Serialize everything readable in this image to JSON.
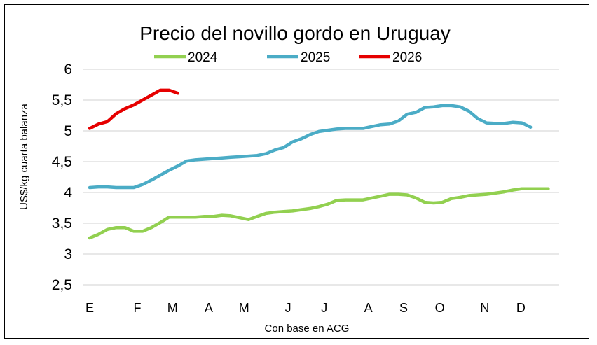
{
  "chart_data": {
    "type": "line",
    "title": "Precio del novillo gordo en Uruguay",
    "xlabel": "Con base en ACG",
    "ylabel": "US$/kg cuarta balanza",
    "ylim": [
      2.5,
      6
    ],
    "yticks": [
      "6",
      "5,5",
      "5",
      "4,5",
      "4",
      "3,5",
      "3",
      "2,5"
    ],
    "ytick_values": [
      6,
      5.5,
      5,
      4.5,
      4,
      3.5,
      3,
      2.5
    ],
    "xlim": [
      0,
      53
    ],
    "xticks": [
      {
        "label": "E",
        "week": 0
      },
      {
        "label": "F",
        "week": 5.4
      },
      {
        "label": "M",
        "week": 9.4
      },
      {
        "label": "A",
        "week": 13.5
      },
      {
        "label": "M",
        "week": 17.5
      },
      {
        "label": "J",
        "week": 22.5
      },
      {
        "label": "J",
        "week": 26.6
      },
      {
        "label": "A",
        "week": 31.6
      },
      {
        "label": "S",
        "week": 35.6
      },
      {
        "label": "O",
        "week": 39.7
      },
      {
        "label": "N",
        "week": 44.8
      },
      {
        "label": "D",
        "week": 48.9
      }
    ],
    "grid": true,
    "legend": "top",
    "series": [
      {
        "name": "2024",
        "color": "#92d050",
        "x": [
          0,
          1,
          2,
          3,
          4,
          5,
          6,
          7,
          8,
          9,
          10,
          11,
          12,
          13,
          14,
          15,
          16,
          17,
          18,
          19,
          20,
          21,
          22,
          23,
          24,
          25,
          26,
          27,
          28,
          29,
          30,
          31,
          32,
          33,
          34,
          35,
          36,
          37,
          38,
          39,
          40,
          41,
          42,
          43,
          44,
          45,
          46,
          47,
          48,
          49,
          50,
          51,
          52
        ],
        "values": [
          3.26,
          3.32,
          3.4,
          3.43,
          3.43,
          3.37,
          3.37,
          3.43,
          3.51,
          3.6,
          3.6,
          3.6,
          3.6,
          3.61,
          3.61,
          3.63,
          3.62,
          3.59,
          3.56,
          3.61,
          3.66,
          3.68,
          3.69,
          3.7,
          3.72,
          3.74,
          3.77,
          3.81,
          3.87,
          3.88,
          3.88,
          3.88,
          3.91,
          3.94,
          3.97,
          3.97,
          3.96,
          3.91,
          3.84,
          3.83,
          3.84,
          3.9,
          3.92,
          3.95,
          3.96,
          3.97,
          3.99,
          4.01,
          4.04,
          4.06,
          4.06,
          4.06,
          4.06
        ]
      },
      {
        "name": "2025",
        "color": "#4bacc6",
        "x": [
          0,
          1,
          2,
          3,
          4,
          5,
          6,
          7,
          8,
          9,
          10,
          11,
          12,
          13,
          14,
          15,
          16,
          17,
          18,
          19,
          20,
          21,
          22,
          23,
          24,
          25,
          26,
          27,
          28,
          29,
          30,
          31,
          32,
          33,
          34,
          35,
          36,
          37,
          38,
          39,
          40,
          41,
          42,
          43,
          44,
          45,
          46,
          47,
          48,
          49,
          50
        ],
        "values": [
          4.08,
          4.09,
          4.09,
          4.08,
          4.08,
          4.08,
          4.13,
          4.2,
          4.28,
          4.36,
          4.43,
          4.51,
          4.53,
          4.54,
          4.55,
          4.56,
          4.57,
          4.58,
          4.59,
          4.6,
          4.63,
          4.69,
          4.73,
          4.82,
          4.87,
          4.94,
          4.99,
          5.01,
          5.03,
          5.04,
          5.04,
          5.04,
          5.07,
          5.1,
          5.11,
          5.16,
          5.27,
          5.3,
          5.38,
          5.39,
          5.41,
          5.41,
          5.39,
          5.32,
          5.2,
          5.13,
          5.12,
          5.12,
          5.14,
          5.13,
          5.06
        ]
      },
      {
        "name": "2026",
        "color": "#e60000",
        "x": [
          0,
          1,
          2,
          3,
          4,
          5,
          6,
          7,
          8,
          9,
          10
        ],
        "values": [
          5.04,
          5.11,
          5.15,
          5.28,
          5.36,
          5.42,
          5.5,
          5.58,
          5.66,
          5.66,
          5.61
        ]
      }
    ]
  }
}
